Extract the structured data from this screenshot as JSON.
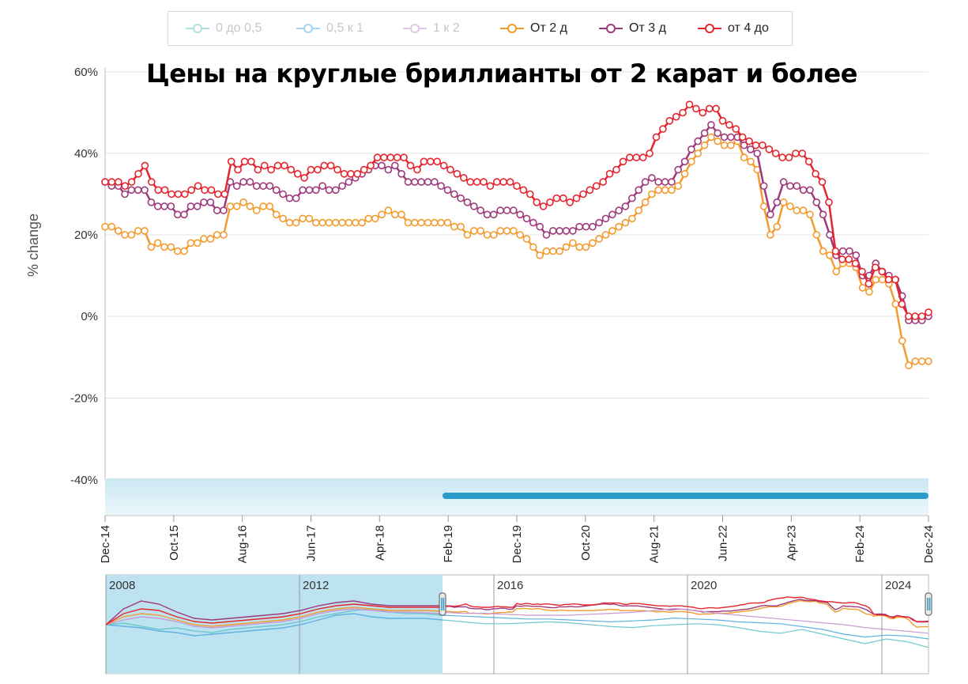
{
  "legend": [
    {
      "label": "0 до 0,5",
      "color": "#6fc8cf",
      "faded": true
    },
    {
      "label": "0,5 к 1",
      "color": "#5eb3e0",
      "faded": true
    },
    {
      "label": "1 к 2",
      "color": "#c89ad2",
      "faded": true
    },
    {
      "label": "От 2 д",
      "color": "#f29b2e",
      "faded": false
    },
    {
      "label": "От 3 д",
      "color": "#9e3a7c",
      "faded": false
    },
    {
      "label": "от 4 до",
      "color": "#e5252e",
      "faded": false
    }
  ],
  "chart_data": {
    "type": "line",
    "title": "Цены на круглые бриллианты от 2 карат и более",
    "ylabel": "% change",
    "ylim": [
      -40,
      60
    ],
    "yticks": [
      "60%",
      "40%",
      "20%",
      "0%",
      "-20%",
      "-40%"
    ],
    "x_tick_labels": [
      "Dec-14",
      "Oct-15",
      "Aug-16",
      "Jun-17",
      "Apr-18",
      "Feb-19",
      "Dec-19",
      "Oct-20",
      "Aug-21",
      "Jun-22",
      "Apr-23",
      "Feb-24",
      "Dec-24"
    ],
    "x_range": [
      "Dec-14",
      "Dec-24"
    ],
    "series": [
      {
        "name": "От 2 д",
        "color": "#f29b2e",
        "values": [
          22,
          22,
          21,
          20,
          20,
          21,
          21,
          17,
          18,
          17,
          17,
          16,
          16,
          18,
          18,
          19,
          19,
          20,
          20,
          27,
          27,
          28,
          27,
          26,
          27,
          27,
          25,
          24,
          23,
          23,
          24,
          24,
          23,
          23,
          23,
          23,
          23,
          23,
          23,
          23,
          24,
          24,
          25,
          26,
          25,
          25,
          23,
          23,
          23,
          23,
          23,
          23,
          23,
          22,
          22,
          20,
          21,
          21,
          20,
          20,
          21,
          21,
          21,
          20,
          19,
          17,
          15,
          16,
          16,
          16,
          17,
          18,
          17,
          17,
          18,
          19,
          20,
          21,
          22,
          23,
          24,
          26,
          28,
          30,
          31,
          31,
          31,
          32,
          35,
          38,
          40,
          42,
          44,
          43,
          42,
          42,
          43,
          39,
          38,
          36,
          27,
          20,
          22,
          28,
          27,
          26,
          26,
          25,
          20,
          16,
          15,
          11,
          13,
          13,
          12,
          7,
          6,
          9,
          9,
          8,
          3,
          -6,
          -12,
          -11,
          -11,
          -11
        ]
      },
      {
        "name": "От 3 д",
        "color": "#9e3a7c",
        "values": [
          33,
          32,
          32,
          30,
          31,
          31,
          31,
          28,
          27,
          27,
          27,
          25,
          25,
          27,
          27,
          28,
          28,
          26,
          26,
          33,
          32,
          33,
          33,
          32,
          32,
          32,
          31,
          30,
          29,
          29,
          31,
          31,
          31,
          32,
          31,
          31,
          32,
          33,
          34,
          35,
          36,
          37,
          37,
          36,
          37,
          35,
          33,
          33,
          33,
          33,
          33,
          32,
          31,
          30,
          29,
          28,
          27,
          26,
          25,
          25,
          26,
          26,
          26,
          25,
          24,
          23,
          22,
          20,
          21,
          21,
          21,
          21,
          22,
          22,
          22,
          23,
          24,
          25,
          26,
          27,
          29,
          31,
          33,
          34,
          33,
          33,
          33,
          36,
          38,
          41,
          43,
          45,
          47,
          45,
          44,
          44,
          44,
          42,
          41,
          40,
          32,
          25,
          28,
          33,
          32,
          32,
          31,
          31,
          28,
          25,
          20,
          15,
          16,
          16,
          15,
          10,
          10,
          13,
          11,
          10,
          9,
          5,
          -1,
          -1,
          -1,
          0
        ]
      },
      {
        "name": "от 4 до",
        "color": "#e5252e",
        "values": [
          33,
          33,
          33,
          32,
          33,
          35,
          37,
          33,
          31,
          31,
          30,
          30,
          30,
          31,
          32,
          31,
          31,
          30,
          30,
          38,
          36,
          38,
          38,
          36,
          37,
          36,
          37,
          37,
          36,
          35,
          34,
          36,
          36,
          37,
          37,
          36,
          35,
          35,
          35,
          36,
          37,
          39,
          39,
          39,
          39,
          39,
          37,
          36,
          38,
          38,
          38,
          37,
          36,
          35,
          34,
          33,
          33,
          33,
          32,
          33,
          33,
          33,
          32,
          31,
          30,
          28,
          27,
          28,
          29,
          29,
          28,
          29,
          30,
          31,
          32,
          33,
          35,
          36,
          38,
          39,
          39,
          39,
          40,
          44,
          46,
          48,
          49,
          50,
          52,
          51,
          50,
          51,
          51,
          48,
          47,
          46,
          44,
          43,
          42,
          42,
          41,
          40,
          39,
          39,
          40,
          40,
          38,
          35,
          33,
          28,
          16,
          14,
          14,
          13,
          11,
          8,
          12,
          11,
          9,
          9,
          3,
          0,
          0,
          0,
          1
        ]
      }
    ]
  },
  "navigator": {
    "year_labels": [
      "2008",
      "2012",
      "2016",
      "2020",
      "2024"
    ]
  }
}
